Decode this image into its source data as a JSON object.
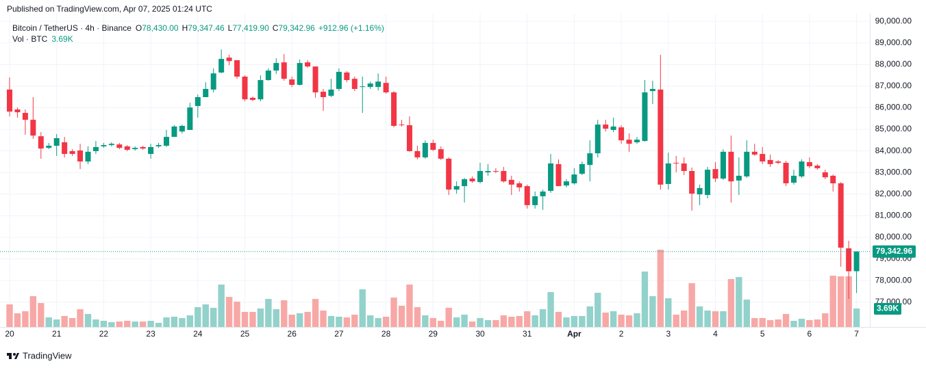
{
  "chart_data": {
    "type": "candlestick",
    "title": "Published on TradingView.com, Apr 07, 2025 01:24 UTC",
    "symbol": "Bitcoin / TetherUS · 4h · Binance",
    "ohlc_keys": [
      "O",
      "H",
      "L",
      "C"
    ],
    "ohlc_labels": [
      "78,430.00",
      "79,347.46",
      "77,419.90",
      "79,342.96"
    ],
    "change": "+912.96 (+1.16%)",
    "volume_title": "Vol · BTC",
    "volume_last_label": "3.69K",
    "footer": "TradingView",
    "up_color": "#089981",
    "down_color": "#f23645",
    "volume_up_color": "#92d2cb",
    "volume_down_color": "#f7a8a6",
    "grid": true,
    "ylim": [
      75850,
      90290
    ],
    "yticks": [
      {
        "value": 77000,
        "label": "77,000.00"
      },
      {
        "value": 78000,
        "label": "78,000.00"
      },
      {
        "value": 79000,
        "label": "79,000.00"
      },
      {
        "value": 80000,
        "label": "80,000.00"
      },
      {
        "value": 81000,
        "label": "81,000.00"
      },
      {
        "value": 82000,
        "label": "82,000.00"
      },
      {
        "value": 83000,
        "label": "83,000.00"
      },
      {
        "value": 84000,
        "label": "84,000.00"
      },
      {
        "value": 85000,
        "label": "85,000.00"
      },
      {
        "value": 86000,
        "label": "86,000.00"
      },
      {
        "value": 87000,
        "label": "87,000.00"
      },
      {
        "value": 88000,
        "label": "88,000.00"
      },
      {
        "value": 89000,
        "label": "89,000.00"
      },
      {
        "value": 90000,
        "label": "90,000.00"
      }
    ],
    "xticks": [
      {
        "value": 0,
        "label": "20"
      },
      {
        "value": 6,
        "label": "21"
      },
      {
        "value": 12,
        "label": "22"
      },
      {
        "value": 18,
        "label": "23"
      },
      {
        "value": 24,
        "label": "24"
      },
      {
        "value": 30,
        "label": "25"
      },
      {
        "value": 36,
        "label": "26"
      },
      {
        "value": 42,
        "label": "27"
      },
      {
        "value": 48,
        "label": "28"
      },
      {
        "value": 54,
        "label": "29"
      },
      {
        "value": 60,
        "label": "30"
      },
      {
        "value": 66,
        "label": "31"
      },
      {
        "value": 72,
        "label": "Apr"
      },
      {
        "value": 78,
        "label": "2"
      },
      {
        "value": 84,
        "label": "3"
      },
      {
        "value": 90,
        "label": "4"
      },
      {
        "value": 96,
        "label": "5"
      },
      {
        "value": 102,
        "label": "6"
      },
      {
        "value": 108,
        "label": "7"
      }
    ],
    "candles": [
      [
        86840,
        87400,
        85600,
        85820
      ],
      [
        85920,
        86010,
        85540,
        85790
      ],
      [
        85760,
        85920,
        84750,
        85440
      ],
      [
        85440,
        86490,
        84560,
        84710
      ],
      [
        84680,
        84870,
        83640,
        84110
      ],
      [
        84140,
        84370,
        84080,
        84240
      ],
      [
        84240,
        84780,
        83770,
        84590
      ],
      [
        84400,
        84650,
        83700,
        83860
      ],
      [
        83990,
        84080,
        83770,
        83860
      ],
      [
        84020,
        84330,
        83160,
        83510
      ],
      [
        83510,
        84210,
        83390,
        83960
      ],
      [
        83990,
        84460,
        83860,
        84180
      ],
      [
        84210,
        84370,
        84140,
        84270
      ],
      [
        84270,
        84400,
        84210,
        84330
      ],
      [
        84300,
        84370,
        84080,
        84140
      ],
      [
        84210,
        84270,
        83990,
        84050
      ],
      [
        84080,
        84210,
        84020,
        84140
      ],
      [
        84180,
        84240,
        84050,
        84110
      ],
      [
        83860,
        84330,
        83640,
        84180
      ],
      [
        84210,
        84370,
        84140,
        84270
      ],
      [
        84240,
        84970,
        84180,
        84650
      ],
      [
        84650,
        85190,
        84650,
        85130
      ],
      [
        84900,
        85220,
        84810,
        85160
      ],
      [
        84970,
        86230,
        84970,
        86010
      ],
      [
        86080,
        86610,
        85540,
        86490
      ],
      [
        86490,
        87180,
        86490,
        86870
      ],
      [
        86840,
        87820,
        86710,
        87590
      ],
      [
        87630,
        88700,
        87590,
        88260
      ],
      [
        88320,
        88450,
        87970,
        88160
      ],
      [
        88200,
        88200,
        87340,
        87440
      ],
      [
        87440,
        87500,
        86300,
        86390
      ],
      [
        86460,
        86520,
        86300,
        86360
      ],
      [
        86390,
        87500,
        86300,
        87280
      ],
      [
        87280,
        87820,
        87250,
        87720
      ],
      [
        87720,
        88290,
        87560,
        88070
      ],
      [
        88100,
        88480,
        87250,
        87340
      ],
      [
        87310,
        87440,
        86960,
        87060
      ],
      [
        87060,
        88230,
        87030,
        88070
      ],
      [
        88100,
        88200,
        87850,
        87910
      ],
      [
        87910,
        87910,
        86460,
        86710
      ],
      [
        86740,
        86870,
        85850,
        86490
      ],
      [
        86550,
        87340,
        86490,
        86840
      ],
      [
        86870,
        87820,
        86770,
        87660
      ],
      [
        87630,
        87690,
        87180,
        87280
      ],
      [
        87340,
        87440,
        86770,
        86870
      ],
      [
        86960,
        87440,
        85760,
        86990
      ],
      [
        86960,
        87210,
        86870,
        87120
      ],
      [
        86960,
        87590,
        86800,
        87210
      ],
      [
        87150,
        87440,
        86650,
        86710
      ],
      [
        86710,
        86770,
        85090,
        85160
      ],
      [
        85220,
        85440,
        85130,
        85190
      ],
      [
        85190,
        85600,
        83960,
        83990
      ],
      [
        83990,
        84240,
        83610,
        83700
      ],
      [
        83700,
        84490,
        83640,
        84370
      ],
      [
        84370,
        84520,
        83990,
        84050
      ],
      [
        84080,
        84210,
        83580,
        83640
      ],
      [
        83640,
        83700,
        81960,
        82210
      ],
      [
        82210,
        82590,
        82020,
        82370
      ],
      [
        82370,
        82750,
        81610,
        82690
      ],
      [
        82720,
        82820,
        82530,
        82590
      ],
      [
        82560,
        83450,
        82500,
        83070
      ],
      [
        83010,
        83390,
        82850,
        83070
      ],
      [
        83070,
        83200,
        82970,
        83040
      ],
      [
        83070,
        83260,
        82530,
        82590
      ],
      [
        82660,
        82850,
        81960,
        82440
      ],
      [
        82500,
        82590,
        82120,
        82310
      ],
      [
        82370,
        82440,
        81330,
        81490
      ],
      [
        81490,
        82120,
        81330,
        81900
      ],
      [
        81900,
        82210,
        81270,
        82120
      ],
      [
        82150,
        83860,
        82060,
        83420
      ],
      [
        83390,
        83610,
        82370,
        82370
      ],
      [
        82400,
        82690,
        82310,
        82590
      ],
      [
        82500,
        83200,
        82440,
        82910
      ],
      [
        82940,
        83510,
        82880,
        83390
      ],
      [
        83350,
        84490,
        82590,
        83890
      ],
      [
        83890,
        85440,
        83700,
        85220
      ],
      [
        85220,
        85440,
        84900,
        85030
      ],
      [
        84970,
        85540,
        84870,
        85130
      ],
      [
        85090,
        85190,
        84330,
        84490
      ],
      [
        84520,
        84810,
        83960,
        84330
      ],
      [
        84400,
        84650,
        84330,
        84520
      ],
      [
        84460,
        87280,
        84430,
        86710
      ],
      [
        86770,
        87250,
        86170,
        86870
      ],
      [
        86840,
        88450,
        82210,
        82440
      ],
      [
        82470,
        83920,
        82210,
        83420
      ],
      [
        83450,
        83770,
        83010,
        83420
      ],
      [
        83420,
        83700,
        82880,
        83070
      ],
      [
        83070,
        83230,
        81230,
        82020
      ],
      [
        81990,
        82440,
        81490,
        82280
      ],
      [
        81960,
        83260,
        81800,
        83130
      ],
      [
        83160,
        83480,
        82560,
        82720
      ],
      [
        82720,
        84080,
        82660,
        83960
      ],
      [
        83960,
        84710,
        81610,
        82590
      ],
      [
        82630,
        83700,
        81960,
        82850
      ],
      [
        82820,
        84490,
        82750,
        83960
      ],
      [
        83960,
        84330,
        83770,
        83830
      ],
      [
        83860,
        84180,
        83390,
        83510
      ],
      [
        83580,
        83830,
        83260,
        83390
      ],
      [
        83510,
        83580,
        83390,
        83450
      ],
      [
        83450,
        83540,
        82370,
        82500
      ],
      [
        82530,
        83130,
        82440,
        82850
      ],
      [
        82820,
        83610,
        82750,
        83510
      ],
      [
        83480,
        83700,
        83200,
        83290
      ],
      [
        83320,
        83390,
        83130,
        83200
      ],
      [
        83010,
        83130,
        82690,
        82780
      ],
      [
        82850,
        82910,
        82120,
        82500
      ],
      [
        82500,
        82560,
        78640,
        79520
      ],
      [
        79490,
        79840,
        77150,
        78430
      ],
      [
        78430,
        79347.46,
        77419.9,
        79342.96
      ]
    ],
    "volume": [
      4510,
      2730,
      3140,
      6150,
      4780,
      1910,
      1500,
      2190,
      1780,
      3550,
      2600,
      1500,
      1230,
      960,
      1090,
      1230,
      1090,
      1090,
      1230,
      820,
      1910,
      2050,
      1780,
      2320,
      3960,
      4510,
      3830,
      8470,
      6010,
      5060,
      3010,
      3010,
      3690,
      5600,
      3550,
      5330,
      2460,
      2730,
      3010,
      5600,
      3280,
      2190,
      2050,
      1910,
      2460,
      7520,
      2320,
      1780,
      2050,
      5880,
      4240,
      8470,
      3960,
      2320,
      1780,
      1230,
      3830,
      1910,
      2460,
      1090,
      1780,
      1370,
      1370,
      2320,
      2050,
      2190,
      3140,
      2320,
      3550,
      6970,
      3010,
      1910,
      2190,
      2190,
      4100,
      6830,
      2870,
      3140,
      2460,
      2320,
      2730,
      11070,
      6150,
      15440,
      5740,
      2460,
      3280,
      8750,
      4100,
      3280,
      3140,
      3140,
      9570,
      9980,
      5470,
      1780,
      1780,
      1370,
      1500,
      2600,
      1230,
      1640,
      1370,
      1500,
      2730,
      10250,
      10110,
      10110,
      3690
    ]
  }
}
